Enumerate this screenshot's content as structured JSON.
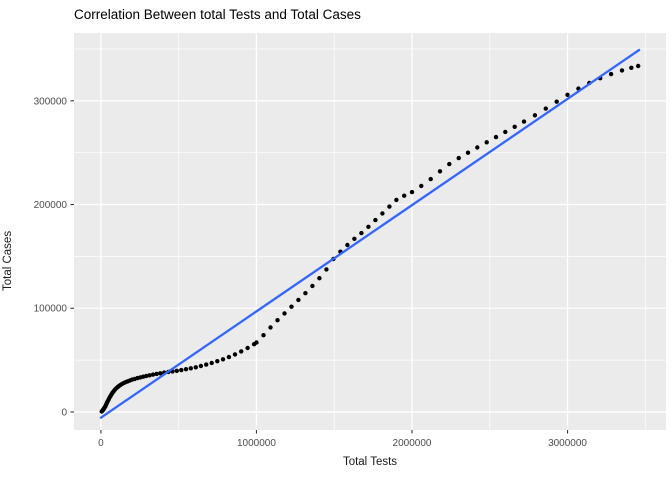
{
  "chart_data": {
    "type": "scatter",
    "title": "Correlation Between total Tests and Total Cases",
    "xlabel": "Total Tests",
    "ylabel": "Total Cases",
    "legend": "none",
    "grid": "white major and minor gridlines on gray panel",
    "xlim": [
      -173000,
      3633000
    ],
    "ylim": [
      -17400,
      365400
    ],
    "x_ticks": [
      {
        "value": 0,
        "label": "0"
      },
      {
        "value": 1000000,
        "label": "1000000"
      },
      {
        "value": 2000000,
        "label": "2000000"
      },
      {
        "value": 3000000,
        "label": "3000000"
      }
    ],
    "y_ticks": [
      {
        "value": 0,
        "label": "0"
      },
      {
        "value": 100000,
        "label": "100000"
      },
      {
        "value": 200000,
        "label": "200000"
      },
      {
        "value": 300000,
        "label": "300000"
      }
    ],
    "x_minor": [
      500000,
      1500000,
      2500000,
      3500000
    ],
    "y_minor": [
      50000,
      150000,
      250000,
      350000
    ],
    "colors": {
      "figure_bg": "#FFFFFF",
      "panel_bg": "#EBEBEB",
      "grid": "#FFFFFF",
      "point": "#000000",
      "trend": "#3366FF",
      "tick_mark": "#333333",
      "tick_text": "#4D4D4D",
      "axis_text": "#1A1A1A",
      "title_text": "#000000"
    },
    "trend_line": {
      "x1": 0,
      "y1": -5500,
      "x2": 3460000,
      "y2": 349000
    },
    "points": [
      [
        5000,
        400
      ],
      [
        8000,
        900
      ],
      [
        11000,
        1500
      ],
      [
        14000,
        2100
      ],
      [
        17000,
        2700
      ],
      [
        20000,
        3400
      ],
      [
        24000,
        4300
      ],
      [
        28000,
        5400
      ],
      [
        32000,
        6600
      ],
      [
        36000,
        7900
      ],
      [
        40000,
        9200
      ],
      [
        45000,
        10700
      ],
      [
        50000,
        12200
      ],
      [
        56000,
        13900
      ],
      [
        62000,
        15500
      ],
      [
        68000,
        17000
      ],
      [
        75000,
        18600
      ],
      [
        82000,
        20000
      ],
      [
        90000,
        21500
      ],
      [
        98000,
        22800
      ],
      [
        107000,
        24000
      ],
      [
        116000,
        25100
      ],
      [
        126000,
        26100
      ],
      [
        137000,
        27100
      ],
      [
        148000,
        28000
      ],
      [
        160000,
        28800
      ],
      [
        173000,
        29600
      ],
      [
        187000,
        30400
      ],
      [
        202000,
        31200
      ],
      [
        218000,
        31900
      ],
      [
        235000,
        32600
      ],
      [
        253000,
        33300
      ],
      [
        272000,
        34000
      ],
      [
        292000,
        34700
      ],
      [
        313000,
        35300
      ],
      [
        335000,
        36000
      ],
      [
        358000,
        36700
      ],
      [
        382000,
        37300
      ],
      [
        407000,
        37900
      ],
      [
        433000,
        38500
      ],
      [
        460000,
        39100
      ],
      [
        488000,
        39700
      ],
      [
        517000,
        40400
      ],
      [
        547000,
        41200
      ],
      [
        578000,
        42100
      ],
      [
        610000,
        43100
      ],
      [
        643000,
        44300
      ],
      [
        677000,
        45700
      ],
      [
        712000,
        47200
      ],
      [
        748000,
        48900
      ],
      [
        785000,
        50800
      ],
      [
        823000,
        52900
      ],
      [
        862000,
        55500
      ],
      [
        902000,
        58400
      ],
      [
        943000,
        61700
      ],
      [
        985000,
        65300
      ],
      [
        1000000,
        67000
      ],
      [
        1045000,
        74000
      ],
      [
        1090000,
        81500
      ],
      [
        1135000,
        88500
      ],
      [
        1180000,
        95000
      ],
      [
        1225000,
        101500
      ],
      [
        1270000,
        108000
      ],
      [
        1315000,
        114500
      ],
      [
        1360000,
        121500
      ],
      [
        1405000,
        129000
      ],
      [
        1450000,
        137500
      ],
      [
        1495000,
        147500
      ],
      [
        1540000,
        154500
      ],
      [
        1585000,
        161000
      ],
      [
        1630000,
        167000
      ],
      [
        1675000,
        172500
      ],
      [
        1720000,
        178500
      ],
      [
        1765000,
        185000
      ],
      [
        1810000,
        191500
      ],
      [
        1855000,
        198000
      ],
      [
        1900000,
        204500
      ],
      [
        1950000,
        208500
      ],
      [
        2000000,
        212000
      ],
      [
        2060000,
        218000
      ],
      [
        2120000,
        224500
      ],
      [
        2180000,
        232000
      ],
      [
        2240000,
        239000
      ],
      [
        2300000,
        244800
      ],
      [
        2360000,
        250000
      ],
      [
        2420000,
        255000
      ],
      [
        2480000,
        260000
      ],
      [
        2540000,
        265000
      ],
      [
        2600000,
        270000
      ],
      [
        2660000,
        275000
      ],
      [
        2720000,
        280000
      ],
      [
        2790000,
        286000
      ],
      [
        2860000,
        292500
      ],
      [
        2930000,
        299200
      ],
      [
        3000000,
        305800
      ],
      [
        3070000,
        311800
      ],
      [
        3140000,
        317200
      ],
      [
        3210000,
        321800
      ],
      [
        3280000,
        325800
      ],
      [
        3350000,
        329300
      ],
      [
        3410000,
        331800
      ],
      [
        3454000,
        333600
      ]
    ]
  }
}
